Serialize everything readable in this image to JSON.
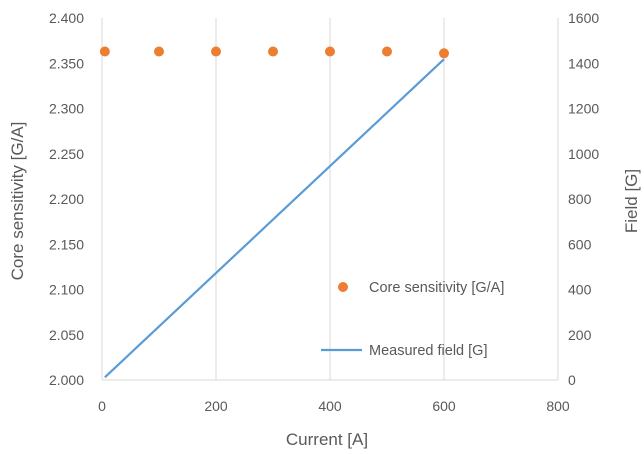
{
  "chart_data": {
    "type": "scatter",
    "x_axis": {
      "label": "Current [A]",
      "range": [
        0,
        800
      ],
      "ticks": [
        "0",
        "200",
        "400",
        "600",
        "800"
      ],
      "tick_values": [
        0,
        200,
        400,
        600,
        800
      ]
    },
    "y_axis_left": {
      "label": "Core sensitivity [G/A]",
      "range": [
        2.0,
        2.4
      ],
      "ticks": [
        "2.000",
        "2.050",
        "2.100",
        "2.150",
        "2.200",
        "2.250",
        "2.300",
        "2.350",
        "2.400"
      ],
      "tick_values": [
        2.0,
        2.05,
        2.1,
        2.15,
        2.2,
        2.25,
        2.3,
        2.35,
        2.4
      ]
    },
    "y_axis_right": {
      "label": "Field [G]",
      "range": [
        0,
        1600
      ],
      "ticks": [
        "0",
        "200",
        "400",
        "600",
        "800",
        "1000",
        "1200",
        "1400",
        "1600"
      ],
      "tick_values": [
        0,
        200,
        400,
        600,
        800,
        1000,
        1200,
        1400,
        1600
      ]
    },
    "grid": "vertical gridlines",
    "series": [
      {
        "name": "Core sensitivity [G/A]",
        "type": "scatter",
        "axis": "left",
        "color": "#ED7D31",
        "points": [
          {
            "x": 5,
            "y": 2.363
          },
          {
            "x": 100,
            "y": 2.363
          },
          {
            "x": 200,
            "y": 2.363
          },
          {
            "x": 300,
            "y": 2.363
          },
          {
            "x": 400,
            "y": 2.363
          },
          {
            "x": 500,
            "y": 2.363
          },
          {
            "x": 600,
            "y": 2.361
          }
        ]
      },
      {
        "name": "Measured field [G]",
        "type": "line",
        "axis": "right",
        "color": "#5B9BD5",
        "points": [
          {
            "x": 5,
            "y": 12
          },
          {
            "x": 600,
            "y": 1418
          }
        ]
      }
    ],
    "legend": [
      "Core sensitivity [G/A]",
      "Measured field [G]"
    ]
  }
}
